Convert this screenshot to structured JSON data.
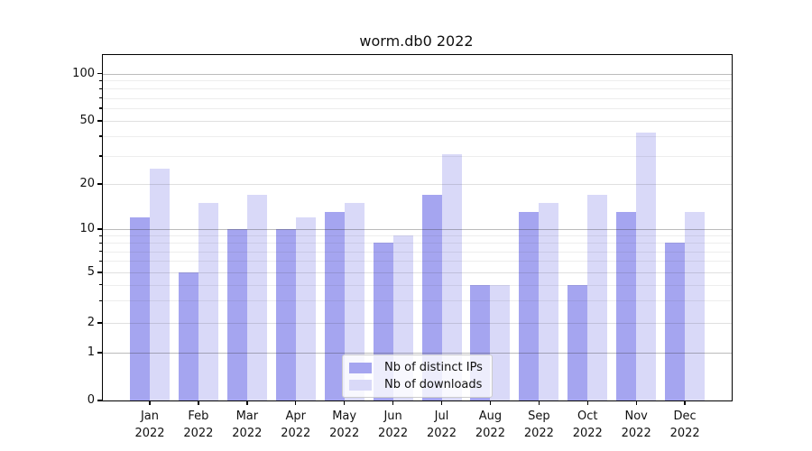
{
  "chart": {
    "colors": {
      "distinct_ips": "#a5a5f0",
      "downloads": "#d9d9f8",
      "grid_major": "rgba(50,50,50,0.33)",
      "grid_mid": "rgba(50,50,50,0.15)",
      "grid_minor": "rgba(50,50,50,0.09)",
      "spine": "#000000",
      "text": "#111111"
    }
  },
  "chart_data": {
    "type": "bar",
    "title": "worm.db0 2022",
    "yscale": "symlog",
    "grid": true,
    "legend_position": "lower center",
    "categories": [
      "Jan 2022",
      "Feb 2022",
      "Mar 2022",
      "Apr 2022",
      "May 2022",
      "Jun 2022",
      "Jul 2022",
      "Aug 2022",
      "Sep 2022",
      "Oct 2022",
      "Nov 2022",
      "Dec 2022"
    ],
    "series": [
      {
        "name": "Nb of distinct IPs",
        "key": "distinct_ips",
        "values": [
          12,
          5,
          10,
          10,
          13,
          8,
          17,
          4,
          13,
          4,
          13,
          8
        ]
      },
      {
        "name": "Nb of downloads",
        "key": "downloads",
        "values": [
          25,
          15,
          17,
          12,
          15,
          9,
          31,
          4,
          15,
          17,
          42,
          13
        ]
      }
    ],
    "y_ticks": [
      0,
      1,
      2,
      5,
      10,
      20,
      50,
      100
    ],
    "y_minor_ticks": [
      3,
      4,
      6,
      7,
      8,
      9,
      30,
      40,
      60,
      70,
      80,
      90
    ],
    "ylim": [
      0,
      130
    ],
    "xlabel": "",
    "ylabel": ""
  }
}
